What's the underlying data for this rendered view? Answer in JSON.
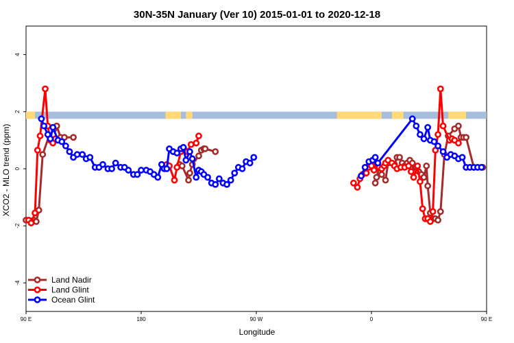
{
  "chart_data": {
    "type": "line",
    "title": "30N-35N January (Ver 10)   2015-01-01 to 2020-12-18",
    "xlabel": "Longitude",
    "ylabel": "XCO2 - MLO trend (ppm)",
    "xlim": [
      90,
      450
    ],
    "ylim": [
      -5,
      5
    ],
    "x_ticks": [
      {
        "value": 90,
        "label": "90 E"
      },
      {
        "value": 180,
        "label": "180"
      },
      {
        "value": 270,
        "label": "90 W"
      },
      {
        "value": 360,
        "label": "0"
      },
      {
        "value": 450,
        "label": "90 E"
      },
      {
        "value": 540,
        "label": "180"
      }
    ],
    "y_ticks": [
      -4,
      -2,
      0,
      2,
      4
    ],
    "grid": false,
    "legend_position": "bottom-left",
    "colors": {
      "land_nadir": "#a52a2a",
      "land_glint": "#ff0000",
      "ocean_glint": "#0000ff",
      "ocean_band": "#a6bddb",
      "land_band": "#fed976"
    },
    "surface_band": {
      "y_range": [
        1.75,
        2.0
      ],
      "land_segments": [
        [
          90,
          97
        ],
        [
          199,
          211
        ],
        [
          215,
          220
        ],
        [
          333,
          368
        ],
        [
          376,
          385
        ],
        [
          420,
          434
        ]
      ]
    },
    "series": [
      {
        "name": "Land Nadir",
        "color": "#a52a2a",
        "x": [
          90,
          96,
          98,
          100,
          103,
          108,
          112,
          114,
          117,
          120,
          127,
          210,
          212,
          217,
          218,
          220,
          225,
          227,
          229,
          230,
          238,
          363,
          364,
          366,
          368,
          371,
          373,
          376,
          378,
          380,
          382,
          384,
          386,
          388,
          390,
          392,
          394,
          395,
          397,
          399,
          401,
          403,
          404,
          406,
          408,
          410,
          412,
          414,
          417,
          420,
          425,
          428,
          430,
          432,
          434,
          440,
          447
        ],
        "y": [
          -1.8,
          -1.8,
          -1.85,
          -1.45,
          0.5,
          1.15,
          1.4,
          1.5,
          1.1,
          1.1,
          1.1,
          0.15,
          0.1,
          -0.4,
          -0.15,
          0.15,
          0.45,
          0.65,
          0.7,
          0.7,
          0.6,
          -0.5,
          -0.3,
          0.05,
          -0.2,
          -0.4,
          0.2,
          0.2,
          0.15,
          0.4,
          0.4,
          0.2,
          0.1,
          0.2,
          0.3,
          0.2,
          0.05,
          0.05,
          -0.1,
          -0.2,
          -0.3,
          0.1,
          -0.6,
          -1.55,
          -1.75,
          -1.75,
          -1.8,
          -1.5,
          0.5,
          1.15,
          1.4,
          1.5,
          1.1,
          1.1,
          1.1,
          0.05,
          0.05
        ]
      },
      {
        "name": "Land Glint",
        "color": "#ff0000",
        "x": [
          92,
          94,
          97,
          99,
          101,
          105,
          107,
          109,
          111,
          113,
          200,
          202,
          206,
          208,
          211,
          214,
          216,
          219,
          223,
          225,
          346,
          349,
          351,
          353,
          356,
          358,
          360,
          362,
          364,
          366,
          368,
          370,
          371,
          373,
          376,
          378,
          380,
          383,
          386,
          389,
          391,
          393,
          396,
          398,
          400,
          402,
          404,
          406,
          408,
          410,
          412,
          414,
          416,
          421,
          423,
          425,
          428
        ],
        "y": [
          -1.8,
          -1.9,
          -1.55,
          0.65,
          1.15,
          2.8,
          1.5,
          1.0,
          0.9,
          1.05,
          0.15,
          0.1,
          -0.4,
          0.05,
          0.6,
          0.65,
          0.6,
          0.85,
          0.9,
          1.15,
          -0.5,
          -0.65,
          -0.35,
          -0.2,
          -0.15,
          0.05,
          0.1,
          -0.05,
          0.2,
          0.05,
          0.0,
          0.1,
          0.2,
          0.3,
          0.2,
          0.1,
          0.0,
          0.05,
          0.05,
          0.1,
          -0.1,
          -0.3,
          0.1,
          -0.45,
          -1.4,
          -1.75,
          -1.75,
          -1.85,
          -1.5,
          0.65,
          1.2,
          2.8,
          1.5,
          1.0,
          1.05,
          1.0,
          0.9
        ]
      },
      {
        "name": "Ocean Glint",
        "color": "#0000ff",
        "x": [
          102,
          104,
          107,
          109,
          111,
          115,
          118,
          121,
          124,
          127,
          130,
          134,
          137,
          140,
          144,
          147,
          150,
          154,
          157,
          160,
          164,
          167,
          170,
          174,
          177,
          180,
          184,
          187,
          190,
          193,
          196,
          198,
          200,
          202,
          205,
          208,
          211,
          213,
          215,
          218,
          220,
          223,
          225,
          227,
          229,
          232,
          235,
          238,
          241,
          244,
          247,
          250,
          253,
          256,
          259,
          262,
          265,
          268,
          352,
          355,
          358,
          361,
          363,
          365,
          392,
          395,
          398,
          401,
          404,
          406,
          409,
          412,
          416,
          419,
          422,
          425,
          428,
          431,
          434,
          437,
          440,
          443,
          446
        ],
        "y": [
          1.75,
          1.5,
          1.2,
          1.05,
          1.45,
          1.0,
          0.95,
          0.8,
          0.6,
          0.4,
          0.5,
          0.5,
          0.35,
          0.4,
          0.05,
          0.05,
          0.15,
          0.0,
          0.0,
          0.2,
          0.05,
          0.05,
          -0.05,
          -0.2,
          -0.2,
          -0.05,
          -0.05,
          -0.1,
          -0.2,
          -0.3,
          0.15,
          0.0,
          0.0,
          0.7,
          0.6,
          0.55,
          0.7,
          0.75,
          0.3,
          0.6,
          0.35,
          -0.3,
          -0.05,
          -0.1,
          -0.2,
          -0.3,
          -0.5,
          -0.55,
          -0.35,
          -0.5,
          -0.55,
          -0.4,
          -0.15,
          0.05,
          0.0,
          0.25,
          0.2,
          0.4,
          -0.25,
          0.05,
          0.25,
          0.3,
          0.4,
          0.2,
          1.75,
          1.5,
          1.2,
          1.05,
          1.45,
          1.0,
          0.95,
          0.8,
          0.6,
          0.4,
          0.5,
          0.45,
          0.35,
          0.4,
          0.05,
          0.05,
          0.05,
          0.05,
          0.05
        ]
      }
    ]
  }
}
